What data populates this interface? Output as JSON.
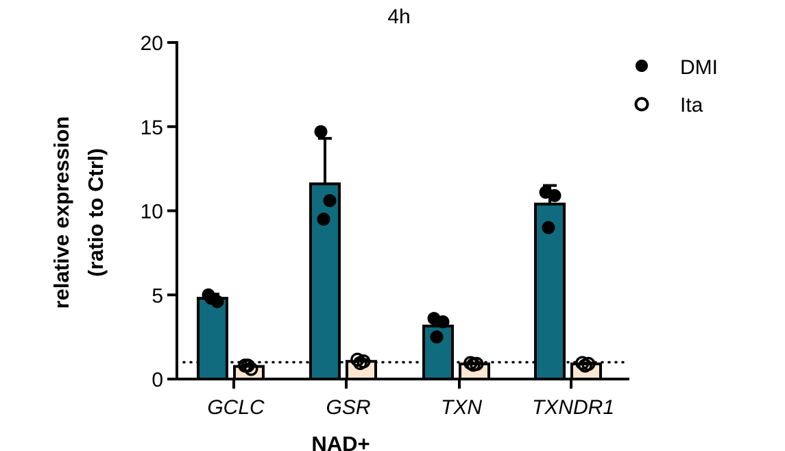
{
  "colors": {
    "dmi_bar": "#0f6b7d",
    "ita_bar": "#fde6cf",
    "stroke": "#000000"
  },
  "legend_placement": "top-right",
  "chart_data": {
    "type": "bar",
    "title": "4h",
    "ylabel_line1": "relative expression",
    "ylabel_line2": "(ratio to Ctrl)",
    "xlabel": "NAD+",
    "ylim": [
      0,
      20
    ],
    "yticks": [
      0,
      5,
      10,
      15,
      20
    ],
    "categories": [
      "GCLC",
      "GSR",
      "TXN",
      "TXNDR1"
    ],
    "reference_line": 1,
    "series": [
      {
        "name": "DMI",
        "marker": "filled-circle",
        "values": [
          4.8,
          11.6,
          3.15,
          10.4
        ],
        "error_upper": [
          0.25,
          2.7,
          0.5,
          1.1
        ],
        "points": [
          [
            5.0,
            4.6,
            4.8
          ],
          [
            14.7,
            10.6,
            9.5
          ],
          [
            3.6,
            3.4,
            2.5
          ],
          [
            11.1,
            10.9,
            9.0
          ]
        ]
      },
      {
        "name": "Ita",
        "marker": "open-circle",
        "values": [
          0.75,
          1.05,
          0.9,
          0.9
        ],
        "error_upper": [
          0.1,
          0.1,
          0.05,
          0.05
        ],
        "points": [
          [
            0.8,
            0.6,
            0.8
          ],
          [
            1.15,
            1.05,
            0.95
          ],
          [
            0.95,
            0.9,
            0.85
          ],
          [
            0.95,
            0.9,
            0.8
          ]
        ]
      }
    ]
  }
}
